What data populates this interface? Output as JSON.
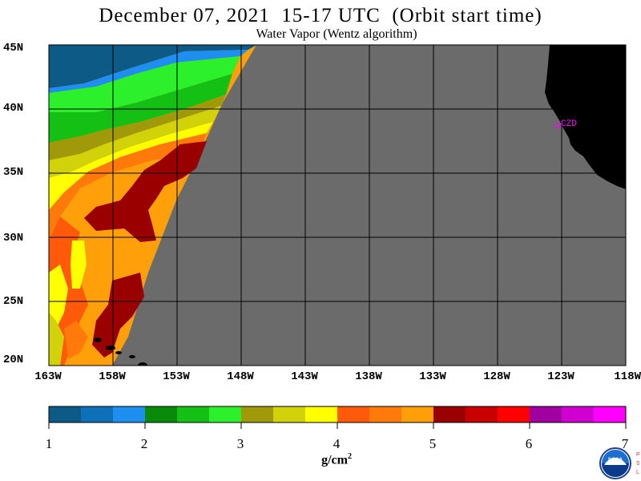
{
  "title": "December 07, 2021  15-17 UTC  (Orbit start time)",
  "subtitle": "Water Vapor (Wentz algorithm)",
  "lat_labels": [
    "45N",
    "40N",
    "35N",
    "30N",
    "25N",
    "20N"
  ],
  "lon_labels": [
    "163W",
    "158W",
    "153W",
    "148W",
    "143W",
    "138W",
    "133W",
    "128W",
    "123W",
    "118W"
  ],
  "station_label": "CZD",
  "colorbar": {
    "tick_labels": [
      "1",
      "2",
      "3",
      "4",
      "5",
      "6",
      "7"
    ],
    "units": "g/cm",
    "units_exp": "2",
    "colors": [
      "#0d5a86",
      "#0e70b8",
      "#1e8ef0",
      "#0a8a0a",
      "#14c014",
      "#2cf02c",
      "#a09a0a",
      "#d2d20a",
      "#ffff00",
      "#ff5a0a",
      "#ff7a0a",
      "#ff9f0a",
      "#9a0000",
      "#c80000",
      "#ff0000",
      "#a000a0",
      "#d000d0",
      "#ff00ff"
    ]
  },
  "colors": {
    "no_data": "#6b6b6b",
    "land": "#000000",
    "grid": "#000000",
    "station": "#ff00ff"
  },
  "logo_text": {
    "noaa": "NOAA",
    "psl": [
      "P",
      "S",
      "L"
    ]
  }
}
